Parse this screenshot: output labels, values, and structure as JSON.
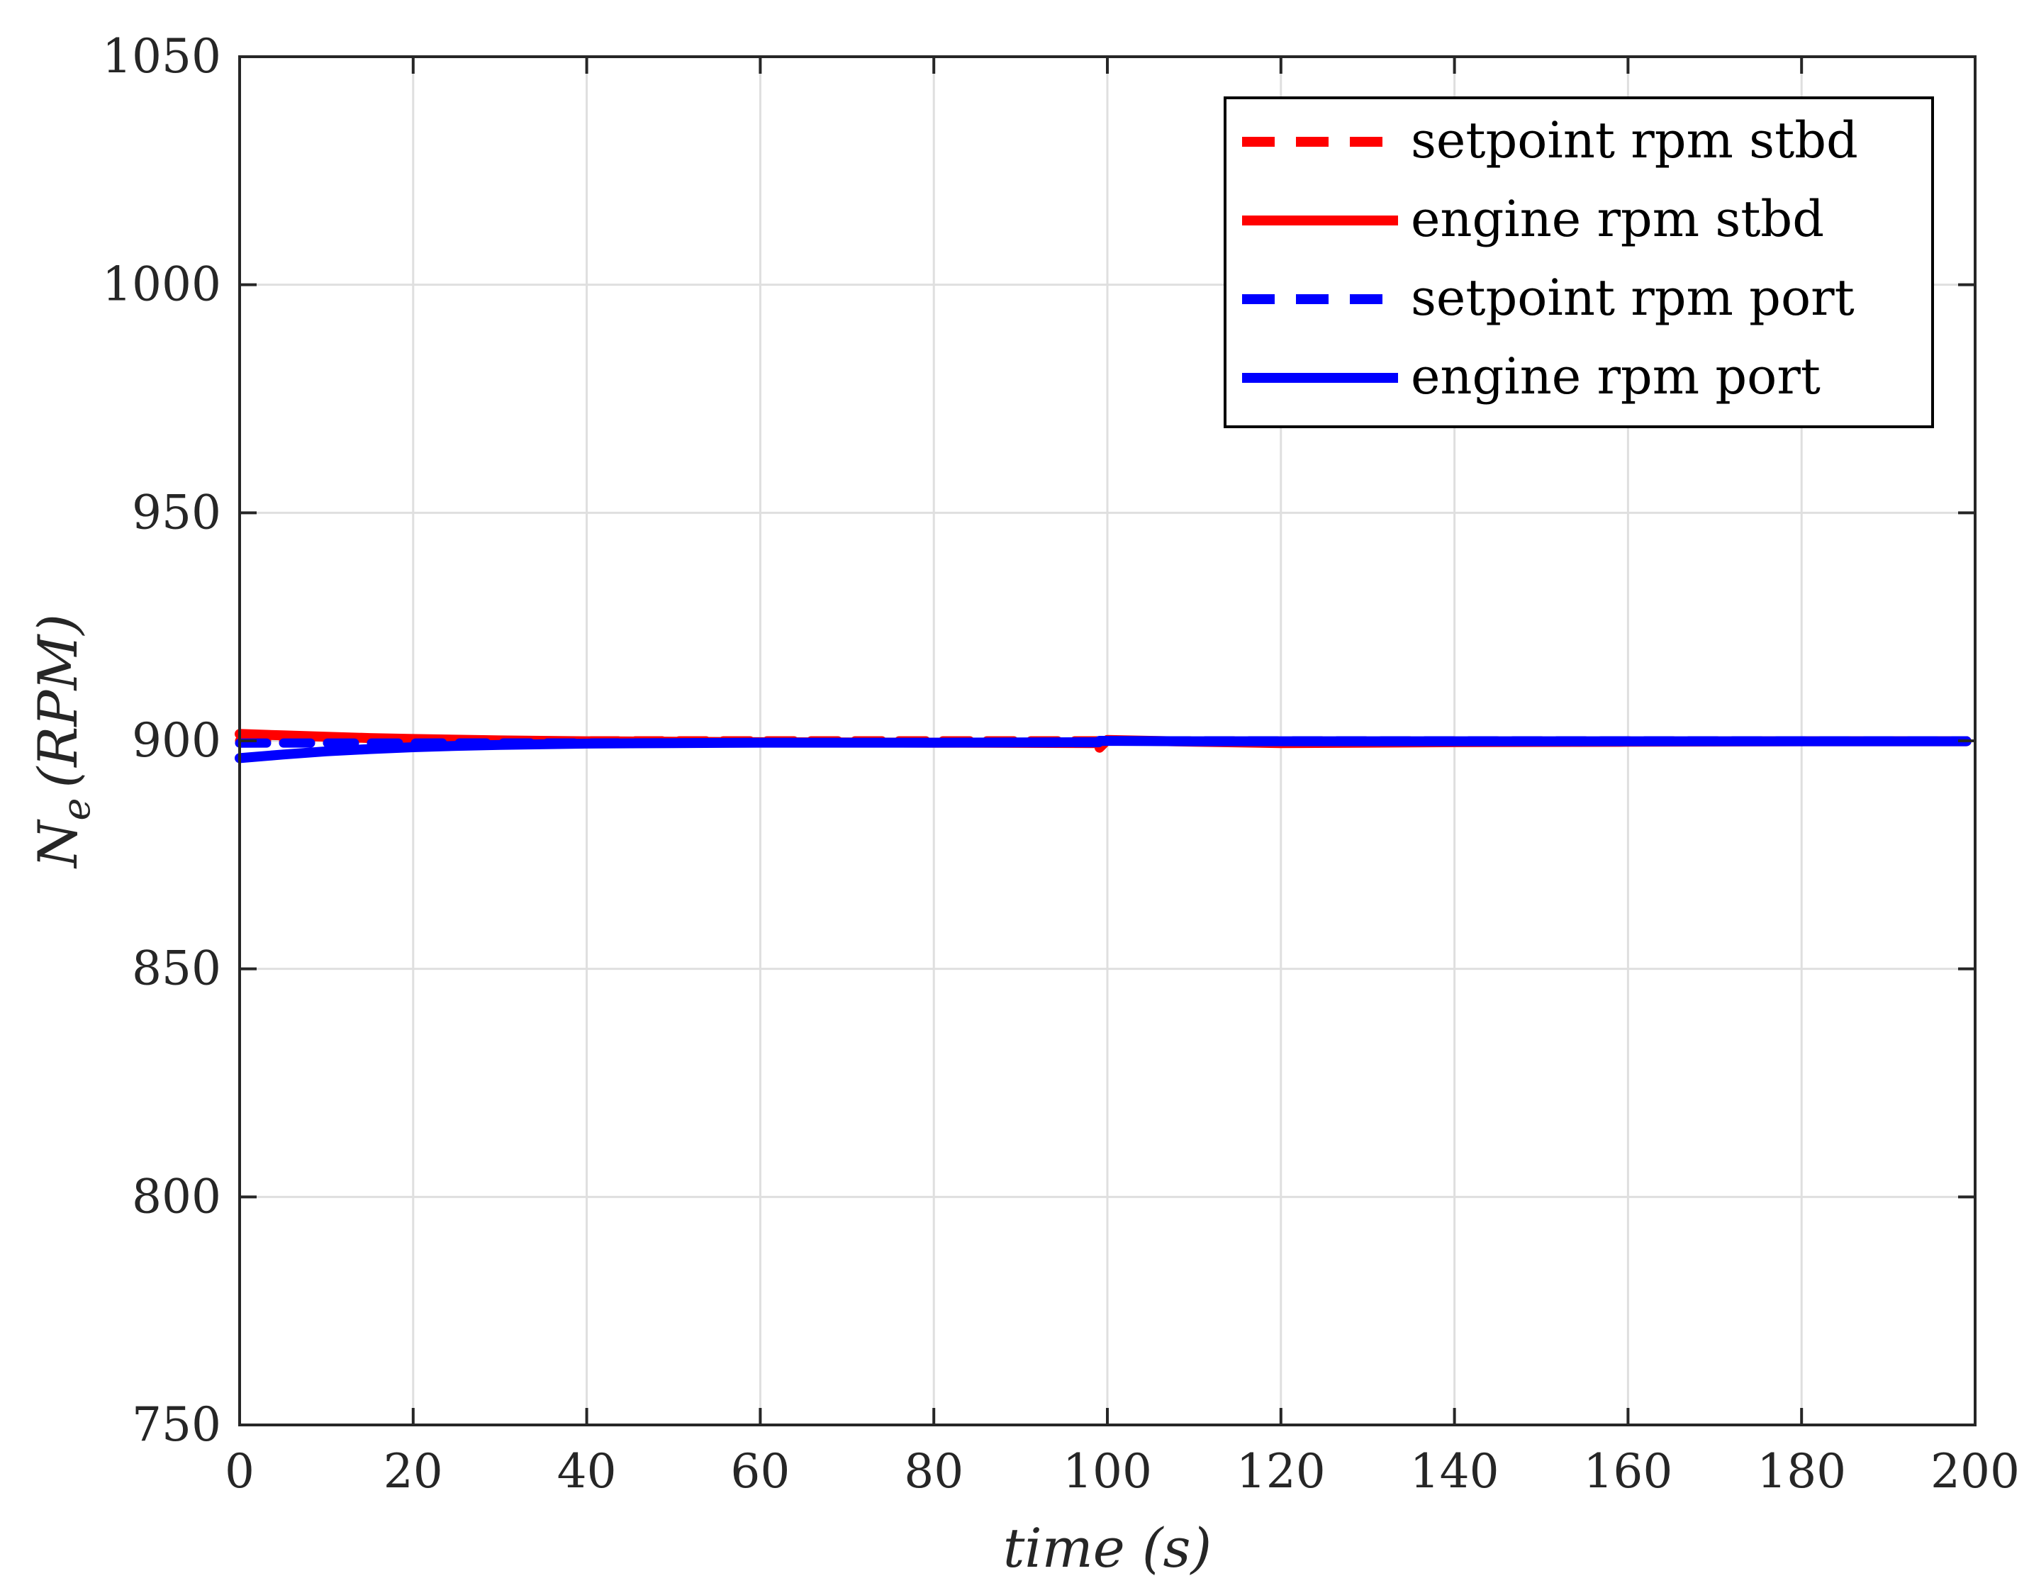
{
  "chart_data": {
    "type": "line",
    "xlabel": "time (s)",
    "ylabel": "N_e (RPM)",
    "ylabel_main": "N",
    "ylabel_sub": "e",
    "ylabel_unit": "(RPM)",
    "xlim": [
      0,
      200
    ],
    "ylim": [
      750,
      1050
    ],
    "xticks": [
      0,
      20,
      40,
      60,
      80,
      100,
      120,
      140,
      160,
      180,
      200
    ],
    "yticks": [
      750,
      800,
      850,
      900,
      950,
      1000,
      1050
    ],
    "xtick_labels": [
      "0",
      "20",
      "40",
      "60",
      "80",
      "100",
      "120",
      "140",
      "160",
      "180",
      "200"
    ],
    "ytick_labels": [
      "750",
      "800",
      "850",
      "900",
      "950",
      "1000",
      "1050"
    ],
    "grid": true,
    "legend_position": "top-right",
    "series": [
      {
        "name": "setpoint rpm stbd",
        "color": "#ff0000",
        "style": "dashed",
        "x": [
          0,
          99,
          99.1,
          199
        ],
        "y": [
          900,
          900,
          900,
          900
        ]
      },
      {
        "name": "engine rpm stbd",
        "color": "#ff0000",
        "style": "solid",
        "x": [
          0,
          5,
          10,
          15,
          20,
          30,
          40,
          60,
          80,
          99,
          99.1,
          100,
          110,
          120,
          130,
          140,
          160,
          180,
          199
        ],
        "y": [
          901.5,
          901.2,
          900.9,
          900.6,
          900.4,
          900.1,
          899.9,
          899.7,
          899.6,
          899.5,
          898.5,
          900.2,
          899.8,
          899.5,
          899.6,
          899.7,
          899.8,
          899.9,
          899.9
        ]
      },
      {
        "name": "setpoint rpm port",
        "color": "#0000ff",
        "style": "dashed",
        "x": [
          0,
          99,
          99.1,
          199
        ],
        "y": [
          899.5,
          899.6,
          900,
          900
        ]
      },
      {
        "name": "engine rpm port",
        "color": "#0000ff",
        "style": "solid",
        "x": [
          0,
          5,
          10,
          15,
          20,
          25,
          30,
          40,
          50,
          60,
          80,
          99,
          99.1,
          110,
          130,
          150,
          170,
          199
        ],
        "y": [
          896.2,
          897.0,
          897.7,
          898.2,
          898.6,
          898.9,
          899.1,
          899.4,
          899.5,
          899.6,
          899.6,
          899.7,
          900.0,
          899.9,
          899.9,
          899.9,
          899.9,
          899.9
        ]
      }
    ]
  }
}
